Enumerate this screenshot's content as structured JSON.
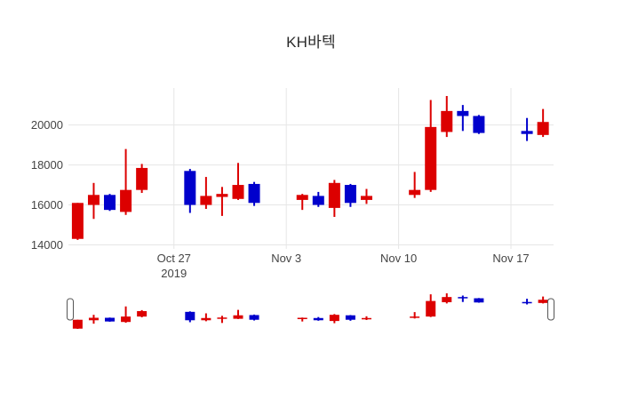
{
  "chart_data": {
    "type": "candlestick",
    "title": "KH바텍",
    "x_type": "date",
    "grid": true,
    "legend": false,
    "rangeslider": true,
    "increasing_color": "#dc0000",
    "decreasing_color": "#0000cc",
    "grid_color": "#e6e6e6",
    "axis_label_color": "#444444",
    "ylim": [
      13800,
      21850
    ],
    "yticks": [
      {
        "value": 14000,
        "label": "14000"
      },
      {
        "value": 16000,
        "label": "16000"
      },
      {
        "value": 18000,
        "label": "18000"
      },
      {
        "value": 20000,
        "label": "20000"
      }
    ],
    "xticks": [
      {
        "date": "2019-10-27",
        "label": "Oct 27",
        "sublabel": "2019"
      },
      {
        "date": "2019-11-03",
        "label": "Nov 3",
        "sublabel": ""
      },
      {
        "date": "2019-11-10",
        "label": "Nov 10",
        "sublabel": ""
      },
      {
        "date": "2019-11-17",
        "label": "Nov 17",
        "sublabel": ""
      }
    ],
    "candles": [
      {
        "date": "2019-10-21",
        "open": 14300,
        "high": 16100,
        "low": 14250,
        "close": 16100
      },
      {
        "date": "2019-10-22",
        "open": 16000,
        "high": 17100,
        "low": 15300,
        "close": 16500
      },
      {
        "date": "2019-10-23",
        "open": 16500,
        "high": 16550,
        "low": 15700,
        "close": 15750
      },
      {
        "date": "2019-10-24",
        "open": 15650,
        "high": 18800,
        "low": 15500,
        "close": 16750
      },
      {
        "date": "2019-10-25",
        "open": 16750,
        "high": 18050,
        "low": 16600,
        "close": 17850
      },
      {
        "date": "2019-10-28",
        "open": 17700,
        "high": 17800,
        "low": 15600,
        "close": 16000
      },
      {
        "date": "2019-10-29",
        "open": 16000,
        "high": 17400,
        "low": 15800,
        "close": 16450
      },
      {
        "date": "2019-10-30",
        "open": 16400,
        "high": 16900,
        "low": 15450,
        "close": 16550
      },
      {
        "date": "2019-10-31",
        "open": 16300,
        "high": 18100,
        "low": 16250,
        "close": 17000
      },
      {
        "date": "2019-11-01",
        "open": 17050,
        "high": 17150,
        "low": 15950,
        "close": 16100
      },
      {
        "date": "2019-11-04",
        "open": 16250,
        "high": 16550,
        "low": 15750,
        "close": 16500
      },
      {
        "date": "2019-11-05",
        "open": 16450,
        "high": 16650,
        "low": 15900,
        "close": 16000
      },
      {
        "date": "2019-11-06",
        "open": 15850,
        "high": 17250,
        "low": 15400,
        "close": 17100
      },
      {
        "date": "2019-11-07",
        "open": 17000,
        "high": 17050,
        "low": 15900,
        "close": 16100
      },
      {
        "date": "2019-11-08",
        "open": 16250,
        "high": 16800,
        "low": 16050,
        "close": 16450
      },
      {
        "date": "2019-11-11",
        "open": 16500,
        "high": 17650,
        "low": 16350,
        "close": 16750
      },
      {
        "date": "2019-11-12",
        "open": 16750,
        "high": 21250,
        "low": 16650,
        "close": 19900
      },
      {
        "date": "2019-11-13",
        "open": 19650,
        "high": 21450,
        "low": 19400,
        "close": 20700
      },
      {
        "date": "2019-11-14",
        "open": 20700,
        "high": 21000,
        "low": 19700,
        "close": 20450
      },
      {
        "date": "2019-11-15",
        "open": 20450,
        "high": 20500,
        "low": 19550,
        "close": 19600
      },
      {
        "date": "2019-11-18",
        "open": 19700,
        "high": 20350,
        "low": 19200,
        "close": 19550
      },
      {
        "date": "2019-11-19",
        "open": 19500,
        "high": 20800,
        "low": 19400,
        "close": 20150
      }
    ]
  }
}
